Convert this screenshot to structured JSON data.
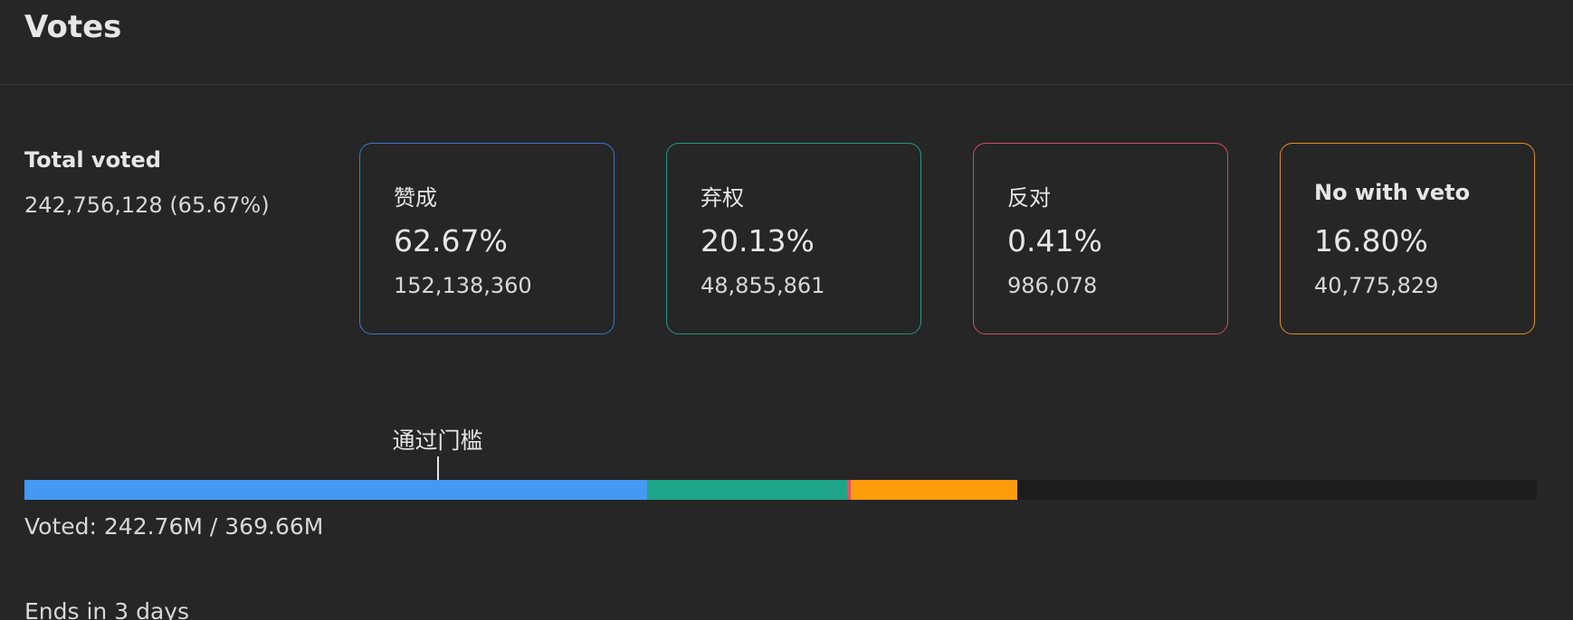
{
  "header": {
    "title": "Votes"
  },
  "total": {
    "label": "Total voted",
    "value": "242,756,128 (65.67%)"
  },
  "options": [
    {
      "name": "赞成",
      "percent": "62.67%",
      "votes": {
        "value": 152138360,
        "label": "152,138,360"
      },
      "color": "#4599f3",
      "border": "#3b78d0"
    },
    {
      "name": "弃权",
      "percent": "20.13%",
      "votes": {
        "value": 48855861,
        "label": "48,855,861"
      },
      "color": "#1fa58a",
      "border": "#1e9a7f"
    },
    {
      "name": "反对",
      "percent": "0.41%",
      "votes": {
        "value": 986078,
        "label": "986,078"
      },
      "color": "#e2545f",
      "border": "#cf4f5b"
    },
    {
      "name": "No with veto",
      "percent": "16.80%",
      "votes": {
        "value": 40775829,
        "label": "40,775,829"
      },
      "color": "#ff9c0b",
      "border": "#e3901b"
    }
  ],
  "threshold": {
    "label": "通过门槛",
    "value": 101000000
  },
  "progress": {
    "prefix": "Voted:",
    "voted": {
      "value": 242760000,
      "label": "242.76M"
    },
    "separator": "/",
    "total": {
      "value": 369660000,
      "label": "369.66M"
    }
  },
  "footer": "Ends in 3 days"
}
